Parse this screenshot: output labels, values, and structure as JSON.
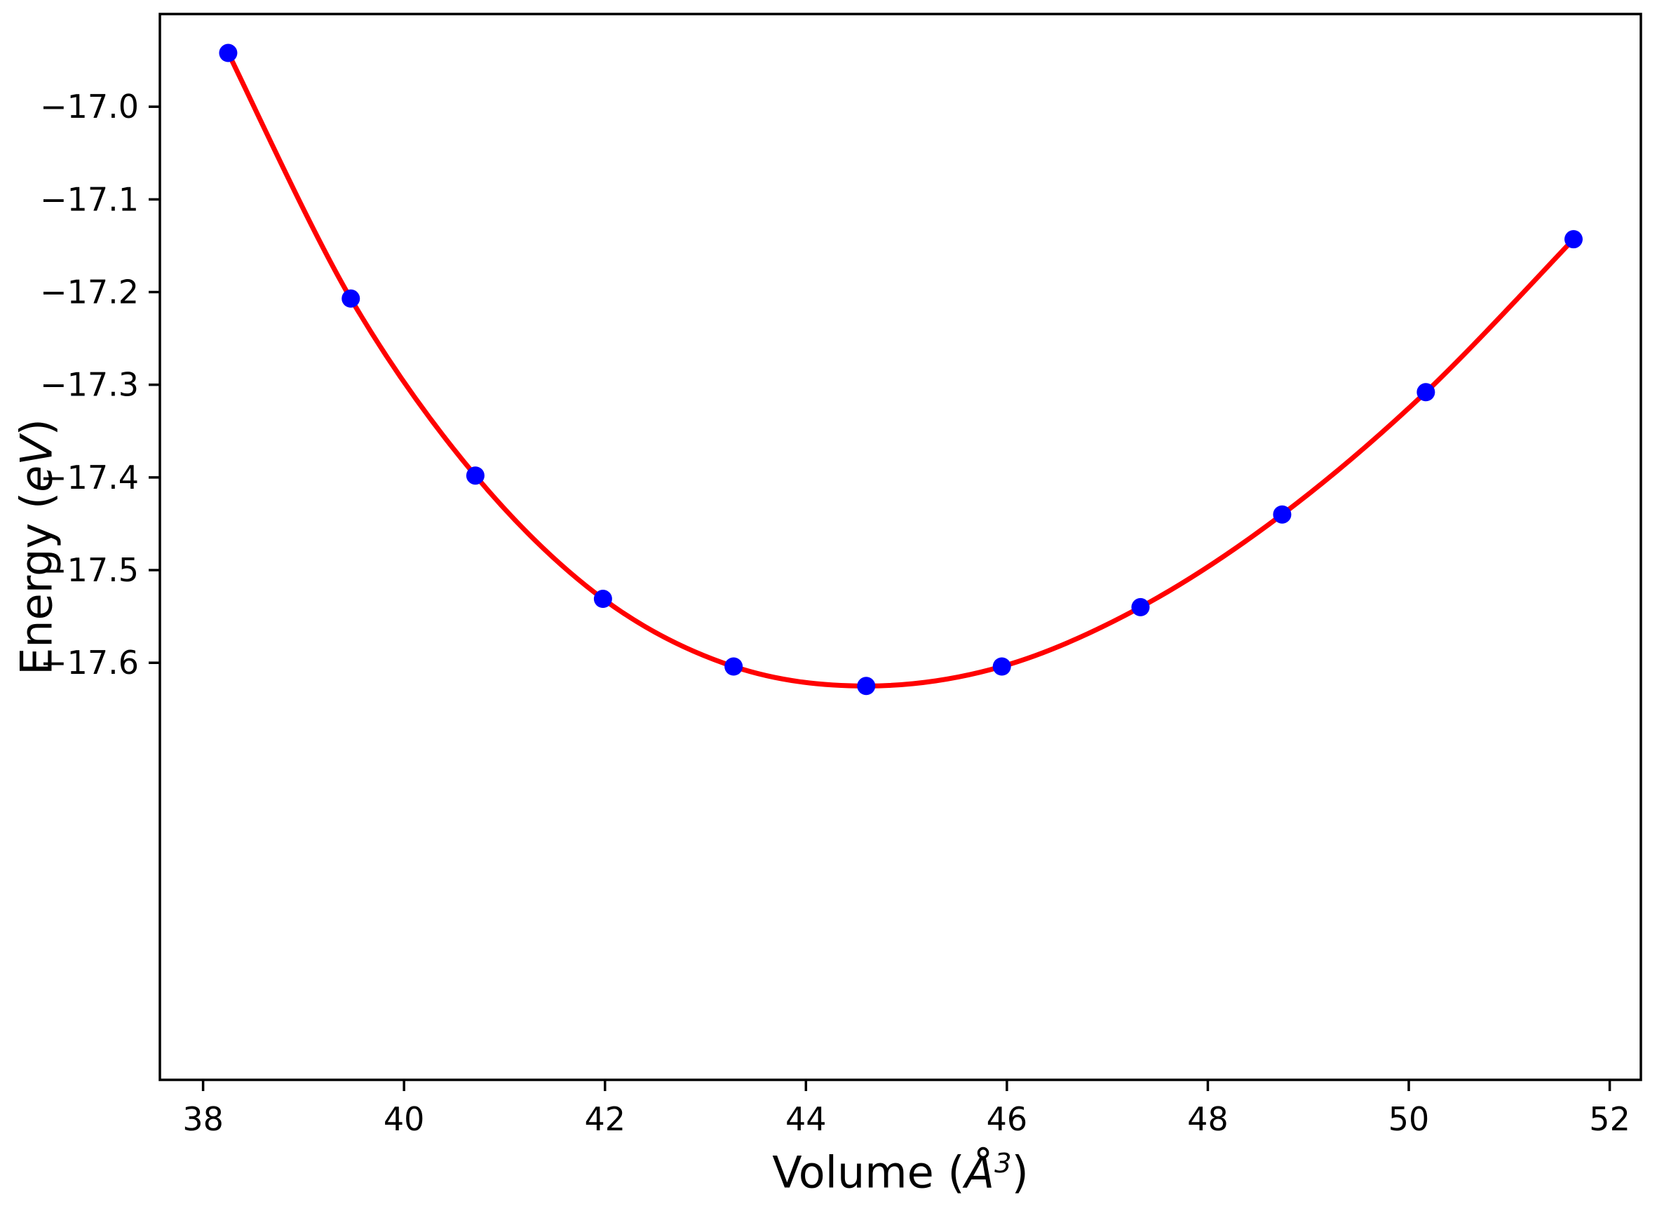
{
  "chart_data": {
    "type": "scatter",
    "title": "",
    "xlabel": "Volume (Å³)",
    "ylabel": "Energy (eV)",
    "xlabel_parts": {
      "prefix": "Volume (",
      "unit": "Å",
      "sup": "3",
      "suffix": ")"
    },
    "ylabel_parts": {
      "prefix": "Energy (",
      "italic": "eV",
      "suffix": ")"
    },
    "x": [
      38.25,
      39.47,
      40.71,
      41.98,
      43.28,
      44.6,
      45.95,
      47.33,
      48.74,
      50.17,
      51.64
    ],
    "y": [
      -16.942,
      -17.207,
      -17.398,
      -17.531,
      -17.604,
      -17.625,
      -17.604,
      -17.54,
      -17.44,
      -17.308,
      -17.143
    ],
    "fit_line": {
      "name": "eos-fit-curve",
      "style": "smooth",
      "color": "#ff0000",
      "linewidth": 7
    },
    "marker": {
      "shape": "circle",
      "color": "#0000ff",
      "radius": 13
    },
    "xlim": [
      37.57,
      52.31
    ],
    "ylim": [
      -18.05,
      -16.9
    ],
    "xticks": {
      "values": [
        38,
        40,
        42,
        44,
        46,
        48,
        50,
        52
      ],
      "labels": [
        "38",
        "40",
        "42",
        "44",
        "46",
        "48",
        "50",
        "52"
      ]
    },
    "yticks": {
      "values": [
        -17.0,
        -17.1,
        -17.2,
        -17.3,
        -17.4,
        -17.5,
        -17.6
      ],
      "labels": [
        "−17.0",
        "−17.1",
        "−17.2",
        "−17.3",
        "−17.4",
        "−17.5",
        "−17.6"
      ]
    },
    "grid": false,
    "legend": false,
    "axis_color": "#000000",
    "background": "#ffffff"
  }
}
